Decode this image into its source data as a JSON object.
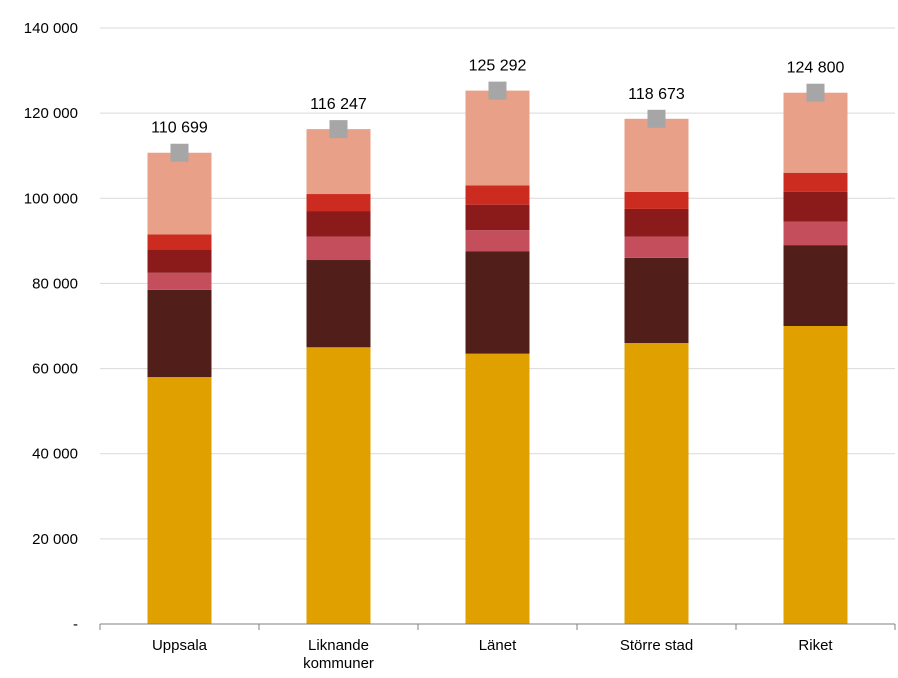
{
  "chart_data": {
    "type": "bar",
    "stacked": true,
    "categories": [
      "Uppsala",
      "Liknande\nkommuner",
      "Länet",
      "Större stad",
      "Riket"
    ],
    "ylim": [
      0,
      140000
    ],
    "yticks": [
      0,
      20000,
      40000,
      60000,
      80000,
      100000,
      120000,
      140000
    ],
    "ytick_labels": [
      "-",
      "20 000",
      "40 000",
      "60 000",
      "80 000",
      "100 000",
      "120 000",
      "140 000"
    ],
    "grid": true,
    "series": [
      {
        "values": [
          58000,
          65000,
          63500,
          66000,
          70000
        ],
        "color": "#e0a000"
      },
      {
        "values": [
          20500,
          20500,
          24000,
          20000,
          19000
        ],
        "color": "#521e1a"
      },
      {
        "values": [
          4000,
          5500,
          5000,
          5000,
          5500
        ],
        "color": "#c44e5c"
      },
      {
        "values": [
          5500,
          6000,
          6000,
          6500,
          7000
        ],
        "color": "#8b1a1a"
      },
      {
        "values": [
          3500,
          4000,
          4500,
          4000,
          4500
        ],
        "color": "#cc2b1f"
      },
      {
        "values": [
          19199,
          15247,
          22292,
          17173,
          18800
        ],
        "color": "#e8a088"
      }
    ],
    "totals": [
      110699,
      116247,
      125292,
      118673,
      124800
    ],
    "total_labels": [
      "110 699",
      "116 247",
      "125 292",
      "118 673",
      "124 800"
    ],
    "total_marker_color": "#a6a6a6"
  }
}
